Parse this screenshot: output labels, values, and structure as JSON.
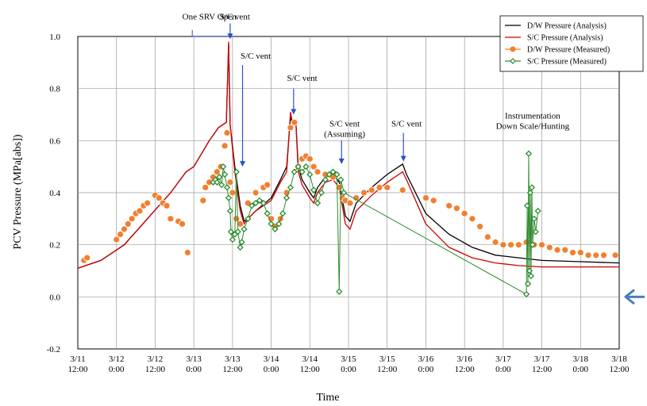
{
  "chart_data": {
    "type": "line",
    "xlabel": "Time",
    "ylabel": "PCV Pressure (MPa[abs])",
    "xlim": [
      0,
      7
    ],
    "ylim": [
      -0.2,
      1.0
    ],
    "x_ticks": [
      {
        "x": 0.0,
        "label": "3/11\n12:00"
      },
      {
        "x": 0.5,
        "label": "3/12\n0:00"
      },
      {
        "x": 1.0,
        "label": "3/12\n12:00"
      },
      {
        "x": 1.5,
        "label": "3/13\n0:00"
      },
      {
        "x": 2.0,
        "label": "3/13\n12:00"
      },
      {
        "x": 2.5,
        "label": "3/14\n0:00"
      },
      {
        "x": 3.0,
        "label": "3/14\n12:00"
      },
      {
        "x": 3.5,
        "label": "3/15\n0:00"
      },
      {
        "x": 4.0,
        "label": "3/15\n12:00"
      },
      {
        "x": 4.5,
        "label": "3/16\n0:00"
      },
      {
        "x": 5.0,
        "label": "3/16\n12:00"
      },
      {
        "x": 5.5,
        "label": "3/17\n0:00"
      },
      {
        "x": 6.0,
        "label": "3/17\n12:00"
      },
      {
        "x": 6.5,
        "label": "3/18\n0:00"
      },
      {
        "x": 7.0,
        "label": "3/18\n12:00"
      }
    ],
    "y_ticks": [
      -0.2,
      0.0,
      0.2,
      0.4,
      0.6,
      0.8,
      1.0
    ],
    "y_tick_labels": [
      "-0.2",
      "0.0",
      "0.2",
      "0.4",
      "0.6",
      "0.8",
      "1.0"
    ],
    "grid": true,
    "legend_position": "top-right",
    "series": [
      {
        "name": "D/W Pressure (Analysis)",
        "style": "line",
        "color": "#000000",
        "points": [
          [
            0,
            0.11
          ],
          [
            0.3,
            0.14
          ],
          [
            0.6,
            0.2
          ],
          [
            0.9,
            0.3
          ],
          [
            1.2,
            0.4
          ],
          [
            1.4,
            0.48
          ],
          [
            1.5,
            0.5
          ],
          [
            1.6,
            0.55
          ],
          [
            1.7,
            0.6
          ],
          [
            1.82,
            0.65
          ],
          [
            1.92,
            0.67
          ],
          [
            1.95,
            0.97
          ],
          [
            1.97,
            0.66
          ],
          [
            2.03,
            0.5
          ],
          [
            2.1,
            0.35
          ],
          [
            2.15,
            0.29
          ],
          [
            2.2,
            0.3
          ],
          [
            2.3,
            0.33
          ],
          [
            2.5,
            0.38
          ],
          [
            2.62,
            0.45
          ],
          [
            2.7,
            0.5
          ],
          [
            2.75,
            0.69
          ],
          [
            2.78,
            0.66
          ],
          [
            2.82,
            0.67
          ],
          [
            2.85,
            0.5
          ],
          [
            2.9,
            0.45
          ],
          [
            3.0,
            0.4
          ],
          [
            3.05,
            0.38
          ],
          [
            3.1,
            0.42
          ],
          [
            3.2,
            0.46
          ],
          [
            3.3,
            0.47
          ],
          [
            3.38,
            0.44
          ],
          [
            3.46,
            0.31
          ],
          [
            3.52,
            0.29
          ],
          [
            3.6,
            0.36
          ],
          [
            3.8,
            0.42
          ],
          [
            4.0,
            0.47
          ],
          [
            4.2,
            0.51
          ],
          [
            4.25,
            0.47
          ],
          [
            4.5,
            0.32
          ],
          [
            4.8,
            0.24
          ],
          [
            5.1,
            0.19
          ],
          [
            5.4,
            0.16
          ],
          [
            5.7,
            0.15
          ],
          [
            6.0,
            0.14
          ],
          [
            6.5,
            0.135
          ],
          [
            7.0,
            0.13
          ]
        ]
      },
      {
        "name": "S/C Pressure (Analysis)",
        "style": "line",
        "color": "#d00000",
        "points": [
          [
            0,
            0.11
          ],
          [
            0.3,
            0.14
          ],
          [
            0.6,
            0.2
          ],
          [
            0.9,
            0.3
          ],
          [
            1.2,
            0.4
          ],
          [
            1.4,
            0.48
          ],
          [
            1.5,
            0.5
          ],
          [
            1.6,
            0.55
          ],
          [
            1.7,
            0.6
          ],
          [
            1.82,
            0.65
          ],
          [
            1.92,
            0.67
          ],
          [
            1.95,
            0.98
          ],
          [
            1.97,
            0.66
          ],
          [
            2.03,
            0.48
          ],
          [
            2.1,
            0.33
          ],
          [
            2.15,
            0.28
          ],
          [
            2.2,
            0.3
          ],
          [
            2.3,
            0.33
          ],
          [
            2.5,
            0.37
          ],
          [
            2.62,
            0.44
          ],
          [
            2.7,
            0.48
          ],
          [
            2.75,
            0.71
          ],
          [
            2.78,
            0.66
          ],
          [
            2.82,
            0.67
          ],
          [
            2.85,
            0.48
          ],
          [
            2.9,
            0.43
          ],
          [
            3.0,
            0.38
          ],
          [
            3.05,
            0.36
          ],
          [
            3.1,
            0.4
          ],
          [
            3.2,
            0.44
          ],
          [
            3.3,
            0.45
          ],
          [
            3.38,
            0.42
          ],
          [
            3.46,
            0.28
          ],
          [
            3.52,
            0.26
          ],
          [
            3.6,
            0.33
          ],
          [
            3.8,
            0.39
          ],
          [
            4.0,
            0.44
          ],
          [
            4.2,
            0.48
          ],
          [
            4.25,
            0.45
          ],
          [
            4.5,
            0.28
          ],
          [
            4.8,
            0.19
          ],
          [
            5.1,
            0.15
          ],
          [
            5.4,
            0.13
          ],
          [
            5.7,
            0.12
          ],
          [
            6.0,
            0.115
          ],
          [
            6.5,
            0.115
          ],
          [
            7.0,
            0.115
          ]
        ]
      },
      {
        "name": "D/W Pressure (Measured)",
        "style": "marker",
        "marker": "circle",
        "color": "#f08030",
        "points": [
          [
            0.08,
            0.14
          ],
          [
            0.12,
            0.15
          ],
          [
            0.5,
            0.22
          ],
          [
            0.55,
            0.24
          ],
          [
            0.6,
            0.26
          ],
          [
            0.65,
            0.28
          ],
          [
            0.7,
            0.3
          ],
          [
            0.75,
            0.32
          ],
          [
            0.8,
            0.33
          ],
          [
            0.85,
            0.35
          ],
          [
            0.9,
            0.36
          ],
          [
            1.0,
            0.39
          ],
          [
            1.05,
            0.38
          ],
          [
            1.1,
            0.36
          ],
          [
            1.15,
            0.35
          ],
          [
            1.2,
            0.3
          ],
          [
            1.3,
            0.29
          ],
          [
            1.35,
            0.28
          ],
          [
            1.42,
            0.17
          ],
          [
            1.62,
            0.37
          ],
          [
            1.65,
            0.42
          ],
          [
            1.7,
            0.44
          ],
          [
            1.75,
            0.46
          ],
          [
            1.8,
            0.48
          ],
          [
            1.85,
            0.5
          ],
          [
            1.9,
            0.58
          ],
          [
            1.93,
            0.63
          ],
          [
            1.97,
            0.44
          ],
          [
            2.0,
            0.4
          ],
          [
            2.05,
            0.3
          ],
          [
            2.1,
            0.28
          ],
          [
            2.2,
            0.36
          ],
          [
            2.3,
            0.4
          ],
          [
            2.4,
            0.42
          ],
          [
            2.45,
            0.43
          ],
          [
            2.5,
            0.3
          ],
          [
            2.55,
            0.27
          ],
          [
            2.62,
            0.3
          ],
          [
            2.7,
            0.4
          ],
          [
            2.75,
            0.65
          ],
          [
            2.8,
            0.67
          ],
          [
            2.85,
            0.5
          ],
          [
            2.9,
            0.53
          ],
          [
            2.95,
            0.54
          ],
          [
            3.0,
            0.53
          ],
          [
            3.05,
            0.5
          ],
          [
            3.1,
            0.48
          ],
          [
            3.2,
            0.47
          ],
          [
            3.3,
            0.46
          ],
          [
            3.38,
            0.42
          ],
          [
            3.42,
            0.38
          ],
          [
            3.46,
            0.37
          ],
          [
            3.52,
            0.36
          ],
          [
            3.6,
            0.38
          ],
          [
            3.7,
            0.4
          ],
          [
            3.8,
            0.41
          ],
          [
            3.9,
            0.42
          ],
          [
            4.0,
            0.42
          ],
          [
            4.2,
            0.41
          ],
          [
            4.5,
            0.38
          ],
          [
            4.6,
            0.37
          ],
          [
            4.8,
            0.35
          ],
          [
            4.9,
            0.34
          ],
          [
            5.0,
            0.32
          ],
          [
            5.1,
            0.3
          ],
          [
            5.2,
            0.27
          ],
          [
            5.3,
            0.23
          ],
          [
            5.4,
            0.21
          ],
          [
            5.5,
            0.2
          ],
          [
            5.6,
            0.2
          ],
          [
            5.7,
            0.2
          ],
          [
            5.8,
            0.21
          ],
          [
            5.9,
            0.2
          ],
          [
            6.0,
            0.2
          ],
          [
            6.1,
            0.19
          ],
          [
            6.2,
            0.18
          ],
          [
            6.3,
            0.18
          ],
          [
            6.4,
            0.17
          ],
          [
            6.5,
            0.17
          ],
          [
            6.6,
            0.16
          ],
          [
            6.7,
            0.16
          ],
          [
            6.8,
            0.16
          ],
          [
            6.95,
            0.16
          ]
        ]
      },
      {
        "name": "S/C Pressure (Measured)",
        "style": "line-marker",
        "marker": "diamond",
        "color": "#2e8b2e",
        "points": [
          [
            1.75,
            0.44
          ],
          [
            1.78,
            0.45
          ],
          [
            1.8,
            0.44
          ],
          [
            1.83,
            0.46
          ],
          [
            1.86,
            0.43
          ],
          [
            1.88,
            0.5
          ],
          [
            1.9,
            0.47
          ],
          [
            1.93,
            0.42
          ],
          [
            1.95,
            0.38
          ],
          [
            1.97,
            0.33
          ],
          [
            1.98,
            0.25
          ],
          [
            2.0,
            0.22
          ],
          [
            2.03,
            0.24
          ],
          [
            2.05,
            0.48
          ],
          [
            2.07,
            0.25
          ],
          [
            2.1,
            0.19
          ],
          [
            2.12,
            0.21
          ],
          [
            2.15,
            0.26
          ],
          [
            2.2,
            0.3
          ],
          [
            2.25,
            0.35
          ],
          [
            2.3,
            0.36
          ],
          [
            2.35,
            0.37
          ],
          [
            2.4,
            0.36
          ],
          [
            2.45,
            0.32
          ],
          [
            2.5,
            0.28
          ],
          [
            2.55,
            0.26
          ],
          [
            2.6,
            0.28
          ],
          [
            2.65,
            0.32
          ],
          [
            2.7,
            0.38
          ],
          [
            2.75,
            0.42
          ],
          [
            2.8,
            0.48
          ],
          [
            2.85,
            0.5
          ],
          [
            2.9,
            0.48
          ],
          [
            2.95,
            0.5
          ],
          [
            3.0,
            0.47
          ],
          [
            3.05,
            0.41
          ],
          [
            3.1,
            0.36
          ],
          [
            3.15,
            0.4
          ],
          [
            3.2,
            0.45
          ],
          [
            3.25,
            0.47
          ],
          [
            3.3,
            0.48
          ],
          [
            3.35,
            0.47
          ],
          [
            3.38,
            0.02
          ],
          [
            3.4,
            0.45
          ],
          [
            3.44,
            0.4
          ],
          [
            5.8,
            0.01
          ],
          [
            5.81,
            0.35
          ],
          [
            5.82,
            0.05
          ],
          [
            5.83,
            0.55
          ],
          [
            5.84,
            0.1
          ],
          [
            5.85,
            0.4
          ],
          [
            5.86,
            0.08
          ],
          [
            5.87,
            0.42
          ],
          [
            5.88,
            0.2
          ],
          [
            5.9,
            0.3
          ],
          [
            5.92,
            0.25
          ],
          [
            5.95,
            0.33
          ]
        ]
      }
    ],
    "annotations": [
      {
        "text": "One SRV Open",
        "x": 1.7,
        "y": 1.065
      },
      {
        "text": "S/C vent",
        "x": 2.03,
        "y": 1.065
      },
      {
        "text": "S/C vent",
        "x": 2.3,
        "y": 0.915
      },
      {
        "text": "S/C vent",
        "x": 2.9,
        "y": 0.83
      },
      {
        "text": "S/C vent",
        "x": 3.45,
        "y": 0.655
      },
      {
        "text": "(Assuming)",
        "x": 3.45,
        "y": 0.615
      },
      {
        "text": "S/C vent",
        "x": 4.25,
        "y": 0.655
      },
      {
        "text": "Instrumentation",
        "x": 5.88,
        "y": 0.685
      },
      {
        "text": "Down Scale/Hunting",
        "x": 5.88,
        "y": 0.645
      }
    ],
    "arrows": [
      {
        "from": [
          1.48,
          1.025
        ],
        "to": [
          1.98,
          0.99
        ],
        "kind": "bracket"
      },
      {
        "from": [
          1.97,
          1.05
        ],
        "to": [
          1.97,
          0.99
        ],
        "kind": "down"
      },
      {
        "from": [
          2.13,
          0.89
        ],
        "to": [
          2.13,
          0.5
        ],
        "kind": "down"
      },
      {
        "from": [
          2.79,
          0.8
        ],
        "to": [
          2.79,
          0.7
        ],
        "kind": "down"
      },
      {
        "from": [
          3.41,
          0.6
        ],
        "to": [
          3.41,
          0.51
        ],
        "kind": "down"
      },
      {
        "from": [
          4.21,
          0.63
        ],
        "to": [
          4.21,
          0.52
        ],
        "kind": "down"
      }
    ],
    "baseline_marker_color": "#4a7fc0"
  }
}
